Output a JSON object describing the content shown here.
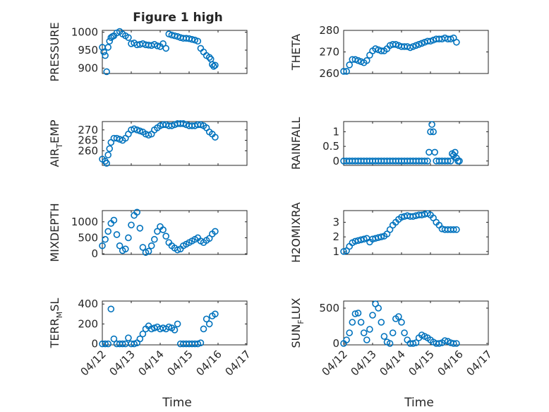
{
  "figure": {
    "title": "Figure 1 high",
    "xlabel": "Time",
    "x_tick_labels": [
      "04/12",
      "04/13",
      "04/14",
      "04/15",
      "04/16",
      "04/17"
    ],
    "marker_color": "#0072BD"
  },
  "chart_data": [
    {
      "type": "scatter",
      "ylabel": "PRESSURE",
      "ylim": [
        885,
        1005
      ],
      "yticks": [
        900,
        950,
        1000
      ],
      "grid": "on",
      "x": [
        0.0,
        0.05,
        0.1,
        0.15,
        0.2,
        0.25,
        0.3,
        0.35,
        0.4,
        0.5,
        0.6,
        0.7,
        0.8,
        0.9,
        1.0,
        1.1,
        1.2,
        1.3,
        1.4,
        1.5,
        1.6,
        1.7,
        1.8,
        1.9,
        2.0,
        2.1,
        2.2,
        2.3,
        2.4,
        2.5,
        2.6,
        2.7,
        2.8,
        2.9,
        3.0,
        3.1,
        3.2,
        3.3,
        3.4,
        3.5,
        3.6,
        3.7,
        3.75,
        3.8,
        3.85,
        3.9
      ],
      "y": [
        958,
        945,
        935,
        890,
        958,
        975,
        985,
        988,
        990,
        998,
        1002,
        995,
        990,
        985,
        968,
        970,
        965,
        966,
        968,
        965,
        964,
        963,
        966,
        962,
        960,
        968,
        955,
        995,
        992,
        990,
        988,
        985,
        983,
        983,
        982,
        980,
        978,
        975,
        955,
        945,
        935,
        930,
        925,
        910,
        905,
        908
      ]
    },
    {
      "type": "scatter",
      "ylabel": "THETA",
      "ylim": [
        260,
        280
      ],
      "yticks": [
        260,
        270,
        280
      ],
      "grid": "on",
      "x": [
        0.0,
        0.1,
        0.2,
        0.3,
        0.4,
        0.5,
        0.6,
        0.7,
        0.8,
        0.9,
        1.0,
        1.1,
        1.2,
        1.3,
        1.4,
        1.5,
        1.6,
        1.7,
        1.8,
        1.9,
        2.0,
        2.1,
        2.2,
        2.3,
        2.4,
        2.5,
        2.6,
        2.7,
        2.8,
        2.9,
        3.0,
        3.1,
        3.2,
        3.3,
        3.4,
        3.5,
        3.6,
        3.7,
        3.8,
        3.9
      ],
      "y": [
        261,
        261,
        264,
        266.5,
        266.5,
        266,
        265.5,
        265,
        266,
        268.5,
        270.5,
        271.5,
        271,
        270.5,
        270.5,
        271.5,
        273,
        273.5,
        273.5,
        273,
        272.5,
        272.5,
        272.5,
        272,
        272.5,
        273,
        273.5,
        274,
        274.5,
        275,
        275,
        275.5,
        276,
        276,
        276,
        276.5,
        276,
        276,
        276.5,
        274.5
      ]
    },
    {
      "type": "scatter",
      "ylabel": "AIR_TEMP",
      "ylim": [
        253,
        274
      ],
      "yticks": [
        260,
        265,
        270
      ],
      "grid": "on",
      "x": [
        0.0,
        0.1,
        0.15,
        0.2,
        0.25,
        0.3,
        0.4,
        0.5,
        0.6,
        0.7,
        0.8,
        0.9,
        1.0,
        1.1,
        1.2,
        1.3,
        1.4,
        1.5,
        1.6,
        1.7,
        1.8,
        1.9,
        2.0,
        2.1,
        2.2,
        2.3,
        2.4,
        2.5,
        2.6,
        2.7,
        2.8,
        2.9,
        3.0,
        3.1,
        3.2,
        3.3,
        3.4,
        3.5,
        3.6,
        3.7,
        3.8,
        3.9
      ],
      "y": [
        256,
        255,
        254,
        258,
        261,
        264,
        266,
        266,
        265.5,
        265,
        266,
        268,
        270,
        270.5,
        270,
        269.5,
        269,
        268,
        267.5,
        268,
        270,
        271,
        272,
        272.5,
        272.5,
        272,
        272,
        272.5,
        273,
        273,
        273,
        272.5,
        272,
        272,
        272,
        272.5,
        272.5,
        272,
        271,
        269,
        268,
        266.5
      ]
    },
    {
      "type": "scatter",
      "ylabel": "RAINFALL",
      "ylim": [
        -0.15,
        1.35
      ],
      "yticks": [
        0,
        0.5,
        1
      ],
      "grid": "on",
      "x": [
        0.0,
        0.1,
        0.2,
        0.3,
        0.4,
        0.5,
        0.6,
        0.7,
        0.8,
        0.9,
        1.0,
        1.1,
        1.2,
        1.3,
        1.4,
        1.5,
        1.6,
        1.7,
        1.8,
        1.9,
        2.0,
        2.1,
        2.2,
        2.3,
        2.4,
        2.5,
        2.6,
        2.7,
        2.8,
        2.9,
        2.95,
        3.0,
        3.05,
        3.1,
        3.15,
        3.2,
        3.3,
        3.4,
        3.5,
        3.6,
        3.7,
        3.75,
        3.8,
        3.85,
        3.9,
        3.95,
        4.0
      ],
      "y": [
        0,
        0,
        0,
        0,
        0,
        0,
        0,
        0,
        0,
        0,
        0,
        0,
        0,
        0,
        0,
        0,
        0,
        0,
        0,
        0,
        0,
        0,
        0,
        0,
        0,
        0,
        0,
        0,
        0,
        0,
        0.3,
        1.0,
        1.25,
        1.0,
        0.3,
        0,
        0,
        0,
        0,
        0,
        0,
        0.25,
        0.2,
        0.3,
        0.1,
        0,
        0
      ]
    },
    {
      "type": "scatter",
      "ylabel": "MIXDEPTH",
      "ylim": [
        -20,
        1350
      ],
      "yticks": [
        0,
        500,
        1000
      ],
      "grid": "on",
      "x": [
        0.0,
        0.1,
        0.2,
        0.3,
        0.4,
        0.5,
        0.6,
        0.7,
        0.8,
        0.9,
        1.0,
        1.1,
        1.2,
        1.3,
        1.4,
        1.5,
        1.6,
        1.7,
        1.8,
        1.9,
        2.0,
        2.1,
        2.2,
        2.3,
        2.4,
        2.5,
        2.6,
        2.7,
        2.8,
        2.9,
        3.0,
        3.1,
        3.2,
        3.3,
        3.4,
        3.5,
        3.6,
        3.7,
        3.8,
        3.9
      ],
      "y": [
        250,
        450,
        700,
        950,
        1050,
        600,
        250,
        100,
        150,
        500,
        900,
        1200,
        1300,
        800,
        200,
        40,
        80,
        250,
        450,
        700,
        850,
        750,
        550,
        350,
        250,
        180,
        120,
        150,
        250,
        300,
        350,
        400,
        450,
        500,
        400,
        350,
        420,
        480,
        620,
        700
      ]
    },
    {
      "type": "scatter",
      "ylabel": "H2OMIXRA",
      "ylim": [
        0.8,
        3.8
      ],
      "yticks": [
        1,
        2,
        3
      ],
      "grid": "on",
      "x": [
        0.0,
        0.1,
        0.2,
        0.3,
        0.4,
        0.5,
        0.6,
        0.7,
        0.8,
        0.9,
        1.0,
        1.1,
        1.2,
        1.3,
        1.4,
        1.5,
        1.6,
        1.7,
        1.8,
        1.9,
        2.0,
        2.1,
        2.2,
        2.3,
        2.4,
        2.5,
        2.6,
        2.7,
        2.8,
        2.9,
        3.0,
        3.1,
        3.2,
        3.3,
        3.4,
        3.5,
        3.6,
        3.7,
        3.8,
        3.9
      ],
      "y": [
        1.0,
        1.05,
        1.35,
        1.6,
        1.7,
        1.75,
        1.8,
        1.85,
        1.9,
        1.65,
        1.85,
        1.9,
        1.95,
        2.0,
        2.05,
        2.2,
        2.5,
        2.8,
        3.0,
        3.2,
        3.35,
        3.4,
        3.45,
        3.4,
        3.4,
        3.45,
        3.5,
        3.5,
        3.55,
        3.6,
        3.5,
        3.3,
        3.0,
        2.8,
        2.55,
        2.5,
        2.5,
        2.5,
        2.5,
        2.5
      ]
    },
    {
      "type": "scatter",
      "ylabel": "TERR_MSL",
      "ylim": [
        -10,
        430
      ],
      "yticks": [
        0,
        200,
        400
      ],
      "grid": "on",
      "x": [
        0.0,
        0.1,
        0.2,
        0.3,
        0.4,
        0.5,
        0.6,
        0.7,
        0.8,
        0.9,
        1.0,
        1.1,
        1.2,
        1.3,
        1.4,
        1.5,
        1.6,
        1.7,
        1.8,
        1.9,
        2.0,
        2.1,
        2.2,
        2.3,
        2.4,
        2.5,
        2.6,
        2.7,
        2.8,
        2.9,
        3.0,
        3.1,
        3.2,
        3.3,
        3.4,
        3.5,
        3.6,
        3.7,
        3.8,
        3.9
      ],
      "y": [
        0,
        0,
        0,
        350,
        50,
        0,
        0,
        0,
        0,
        60,
        0,
        0,
        10,
        50,
        100,
        150,
        180,
        150,
        160,
        170,
        150,
        160,
        150,
        170,
        160,
        140,
        200,
        0,
        0,
        0,
        0,
        0,
        0,
        0,
        10,
        150,
        250,
        200,
        280,
        300
      ]
    },
    {
      "type": "scatter",
      "ylabel": "SUN_FLUX",
      "ylim": [
        -20,
        600
      ],
      "yticks": [
        0,
        500
      ],
      "grid": "on",
      "x": [
        0.0,
        0.1,
        0.2,
        0.3,
        0.4,
        0.5,
        0.6,
        0.7,
        0.8,
        0.9,
        1.0,
        1.1,
        1.2,
        1.3,
        1.4,
        1.5,
        1.6,
        1.7,
        1.8,
        1.9,
        2.0,
        2.1,
        2.2,
        2.3,
        2.4,
        2.5,
        2.6,
        2.7,
        2.8,
        2.9,
        3.0,
        3.1,
        3.2,
        3.3,
        3.4,
        3.5,
        3.6,
        3.7,
        3.8,
        3.9
      ],
      "y": [
        0,
        50,
        150,
        300,
        420,
        430,
        300,
        150,
        50,
        200,
        400,
        560,
        500,
        300,
        100,
        20,
        0,
        150,
        350,
        380,
        300,
        150,
        50,
        0,
        0,
        10,
        80,
        120,
        100,
        80,
        50,
        20,
        0,
        0,
        10,
        40,
        30,
        10,
        0,
        0
      ]
    }
  ]
}
